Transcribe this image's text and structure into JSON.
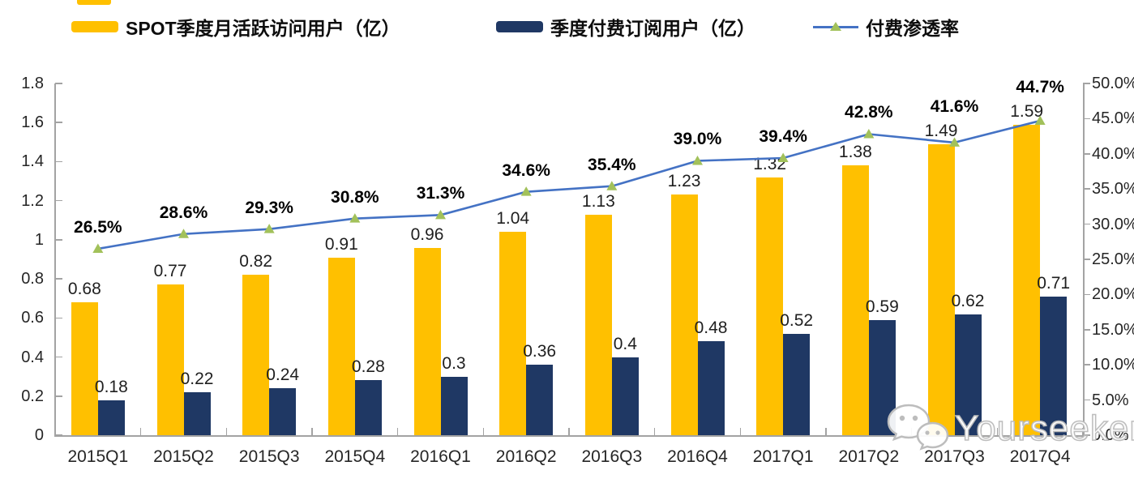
{
  "legend": {
    "items": [
      {
        "label": "SPOT季度月活跃访问用户（亿）",
        "color": "#FFC000",
        "type": "bar"
      },
      {
        "label": "季度付费订阅用户（亿）",
        "color": "#1F3864",
        "type": "bar"
      },
      {
        "label": "付费渗透率",
        "type": "line",
        "line_color": "#4472C4",
        "marker_color": "#A2C15A"
      }
    ]
  },
  "watermark": {
    "icon": "wechat-icon",
    "text": "Yourseeker"
  },
  "chart_data": {
    "type": "bar",
    "subtype": "grouped-bars-with-line-combo",
    "categories": [
      "2015Q1",
      "2015Q2",
      "2015Q3",
      "2015Q4",
      "2016Q1",
      "2016Q2",
      "2016Q3",
      "2016Q4",
      "2017Q1",
      "2017Q2",
      "2017Q3",
      "2017Q4"
    ],
    "series": [
      {
        "name": "SPOT季度月活跃访问用户（亿）",
        "type": "bar",
        "axis": "left",
        "color": "#FFC000",
        "values": [
          0.68,
          0.77,
          0.82,
          0.91,
          0.96,
          1.04,
          1.13,
          1.23,
          1.32,
          1.38,
          1.49,
          1.59
        ],
        "labels": [
          "0.68",
          "0.77",
          "0.82",
          "0.91",
          "0.96",
          "1.04",
          "1.13",
          "1.23",
          "1.32",
          "1.38",
          "1.49",
          "1.59"
        ]
      },
      {
        "name": "季度付费订阅用户（亿）",
        "type": "bar",
        "axis": "left",
        "color": "#1F3864",
        "values": [
          0.18,
          0.22,
          0.24,
          0.28,
          0.3,
          0.36,
          0.4,
          0.48,
          0.52,
          0.59,
          0.62,
          0.71
        ],
        "labels": [
          "0.18",
          "0.22",
          "0.24",
          "0.28",
          "0.3",
          "0.36",
          "0.4",
          "0.48",
          "0.52",
          "0.59",
          "0.62",
          "0.71"
        ]
      },
      {
        "name": "付费渗透率",
        "type": "line",
        "axis": "right",
        "color": "#4472C4",
        "marker": "triangle",
        "marker_color": "#A2C15A",
        "values": [
          26.5,
          28.6,
          29.3,
          30.8,
          31.3,
          34.6,
          35.4,
          39.0,
          39.4,
          42.8,
          41.6,
          44.7
        ],
        "labels": [
          "26.5%",
          "28.6%",
          "29.3%",
          "30.8%",
          "31.3%",
          "34.6%",
          "35.4%",
          "39.0%",
          "39.4%",
          "42.8%",
          "41.6%",
          "44.7%"
        ]
      }
    ],
    "left_axis": {
      "min": 0,
      "max": 1.8,
      "tick_step": 0.2,
      "ticks": [
        "0",
        "0.2",
        "0.4",
        "0.6",
        "0.8",
        "1",
        "1.2",
        "1.4",
        "1.6",
        "1.8"
      ]
    },
    "right_axis": {
      "min": 0,
      "max": 50,
      "tick_step": 5,
      "ticks": [
        "0.0%",
        "5.0%",
        "10.0%",
        "15.0%",
        "20.0%",
        "25.0%",
        "30.0%",
        "35.0%",
        "40.0%",
        "45.0%",
        "50.0%"
      ]
    },
    "grid": false,
    "legend_position": "top"
  }
}
